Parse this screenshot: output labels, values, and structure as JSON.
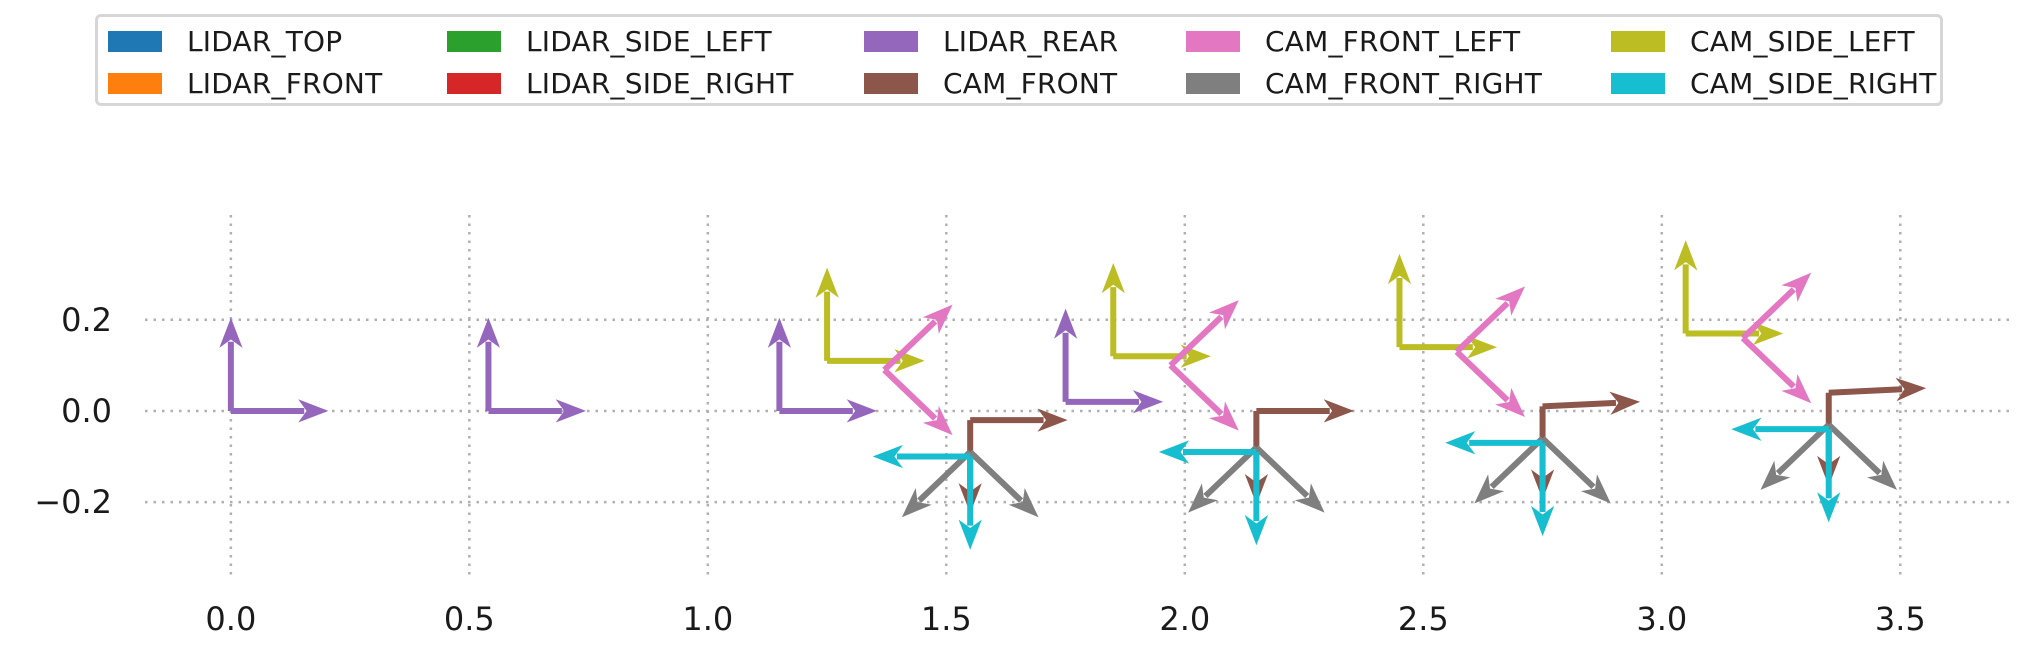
{
  "chart_data": {
    "type": "frame_axes",
    "legend_placement": "top",
    "grid": true,
    "grid_style": "dotted",
    "xlim": [
      -0.18,
      3.73
    ],
    "ylim": [
      -0.36,
      0.43
    ],
    "x_ticks": [
      0.0,
      0.5,
      1.0,
      1.5,
      2.0,
      2.5,
      3.0,
      3.5
    ],
    "x_tick_labels": [
      "0.0",
      "0.5",
      "1.0",
      "1.5",
      "2.0",
      "2.5",
      "3.0",
      "3.5"
    ],
    "y_ticks": [
      0.2,
      0.0,
      -0.2
    ],
    "y_tick_labels": [
      "0.2",
      "0.0",
      "−0.2"
    ],
    "series": [
      {
        "name": "LIDAR_TOP",
        "color": "#1f77b4"
      },
      {
        "name": "LIDAR_FRONT",
        "color": "#ff7f0e"
      },
      {
        "name": "LIDAR_SIDE_LEFT",
        "color": "#2ca02c"
      },
      {
        "name": "LIDAR_SIDE_RIGHT",
        "color": "#d62728"
      },
      {
        "name": "LIDAR_REAR",
        "color": "#9467bd"
      },
      {
        "name": "CAM_FRONT",
        "color": "#8c564b"
      },
      {
        "name": "CAM_FRONT_LEFT",
        "color": "#e377c2"
      },
      {
        "name": "CAM_FRONT_RIGHT",
        "color": "#7f7f7f"
      },
      {
        "name": "CAM_SIDE_LEFT",
        "color": "#bcbd22"
      },
      {
        "name": "CAM_SIDE_RIGHT",
        "color": "#17becf"
      }
    ],
    "frames": [
      {
        "series": "LIDAR_REAR",
        "origin": [
          0.0,
          0.0
        ],
        "x_tip": [
          0.2,
          0.0
        ],
        "y_tip": [
          0.0,
          0.2
        ]
      },
      {
        "series": "LIDAR_REAR",
        "origin": [
          0.54,
          0.0
        ],
        "x_tip": [
          0.74,
          0.0
        ],
        "y_tip": [
          0.54,
          0.2
        ]
      },
      {
        "series": "LIDAR_REAR",
        "origin": [
          1.15,
          0.0
        ],
        "x_tip": [
          1.35,
          0.0
        ],
        "y_tip": [
          1.15,
          0.2
        ]
      },
      {
        "series": "CAM_SIDE_LEFT",
        "origin": [
          1.25,
          0.11
        ],
        "x_tip": [
          1.45,
          0.11
        ],
        "y_tip": [
          1.25,
          0.31
        ]
      },
      {
        "series": "CAM_FRONT_LEFT",
        "origin": [
          1.37,
          0.09
        ],
        "x_tip": [
          1.51,
          0.23
        ],
        "y_tip": [
          1.51,
          -0.05
        ]
      },
      {
        "series": "CAM_FRONT",
        "origin": [
          1.55,
          -0.02
        ],
        "x_tip": [
          1.75,
          -0.02
        ],
        "y_tip": [
          1.55,
          -0.22
        ]
      },
      {
        "series": "CAM_FRONT_RIGHT",
        "origin": [
          1.55,
          -0.09
        ],
        "x_tip": [
          1.69,
          -0.23
        ],
        "y_tip": [
          1.41,
          -0.23
        ]
      },
      {
        "series": "CAM_SIDE_RIGHT",
        "origin": [
          1.55,
          -0.1
        ],
        "x_tip": [
          1.35,
          -0.1
        ],
        "y_tip": [
          1.55,
          -0.3
        ]
      },
      {
        "series": "LIDAR_REAR",
        "origin": [
          1.75,
          0.02
        ],
        "x_tip": [
          1.95,
          0.02
        ],
        "y_tip": [
          1.75,
          0.22
        ]
      },
      {
        "series": "CAM_SIDE_LEFT",
        "origin": [
          1.85,
          0.12
        ],
        "x_tip": [
          2.05,
          0.12
        ],
        "y_tip": [
          1.85,
          0.32
        ]
      },
      {
        "series": "CAM_FRONT_LEFT",
        "origin": [
          1.97,
          0.1
        ],
        "x_tip": [
          2.11,
          0.24
        ],
        "y_tip": [
          2.11,
          -0.04
        ]
      },
      {
        "series": "CAM_FRONT",
        "origin": [
          2.15,
          0.0
        ],
        "x_tip": [
          2.35,
          0.0
        ],
        "y_tip": [
          2.15,
          -0.2
        ]
      },
      {
        "series": "CAM_FRONT_RIGHT",
        "origin": [
          2.15,
          -0.08
        ],
        "x_tip": [
          2.29,
          -0.22
        ],
        "y_tip": [
          2.01,
          -0.22
        ]
      },
      {
        "series": "CAM_SIDE_RIGHT",
        "origin": [
          2.15,
          -0.09
        ],
        "x_tip": [
          1.95,
          -0.09
        ],
        "y_tip": [
          2.15,
          -0.29
        ]
      },
      {
        "series": "CAM_SIDE_LEFT",
        "origin": [
          2.45,
          0.14
        ],
        "x_tip": [
          2.65,
          0.14
        ],
        "y_tip": [
          2.45,
          0.34
        ]
      },
      {
        "series": "CAM_FRONT_LEFT",
        "origin": [
          2.57,
          0.13
        ],
        "x_tip": [
          2.71,
          0.27
        ],
        "y_tip": [
          2.71,
          -0.01
        ]
      },
      {
        "series": "CAM_FRONT",
        "origin": [
          2.75,
          0.01
        ],
        "x_tip": [
          2.95,
          0.02
        ],
        "y_tip": [
          2.75,
          -0.19
        ]
      },
      {
        "series": "CAM_FRONT_RIGHT",
        "origin": [
          2.75,
          -0.06
        ],
        "x_tip": [
          2.89,
          -0.2
        ],
        "y_tip": [
          2.61,
          -0.2
        ]
      },
      {
        "series": "CAM_SIDE_RIGHT",
        "origin": [
          2.75,
          -0.07
        ],
        "x_tip": [
          2.55,
          -0.07
        ],
        "y_tip": [
          2.75,
          -0.27
        ]
      },
      {
        "series": "CAM_SIDE_LEFT",
        "origin": [
          3.05,
          0.17
        ],
        "x_tip": [
          3.25,
          0.17
        ],
        "y_tip": [
          3.05,
          0.37
        ]
      },
      {
        "series": "CAM_FRONT_LEFT",
        "origin": [
          3.17,
          0.16
        ],
        "x_tip": [
          3.31,
          0.3
        ],
        "y_tip": [
          3.31,
          0.02
        ]
      },
      {
        "series": "CAM_FRONT",
        "origin": [
          3.35,
          0.04
        ],
        "x_tip": [
          3.55,
          0.05
        ],
        "y_tip": [
          3.35,
          -0.16
        ]
      },
      {
        "series": "CAM_FRONT_RIGHT",
        "origin": [
          3.35,
          -0.03
        ],
        "x_tip": [
          3.49,
          -0.17
        ],
        "y_tip": [
          3.21,
          -0.17
        ]
      },
      {
        "series": "CAM_SIDE_RIGHT",
        "origin": [
          3.35,
          -0.04
        ],
        "x_tip": [
          3.15,
          -0.04
        ],
        "y_tip": [
          3.35,
          -0.24
        ]
      }
    ]
  }
}
